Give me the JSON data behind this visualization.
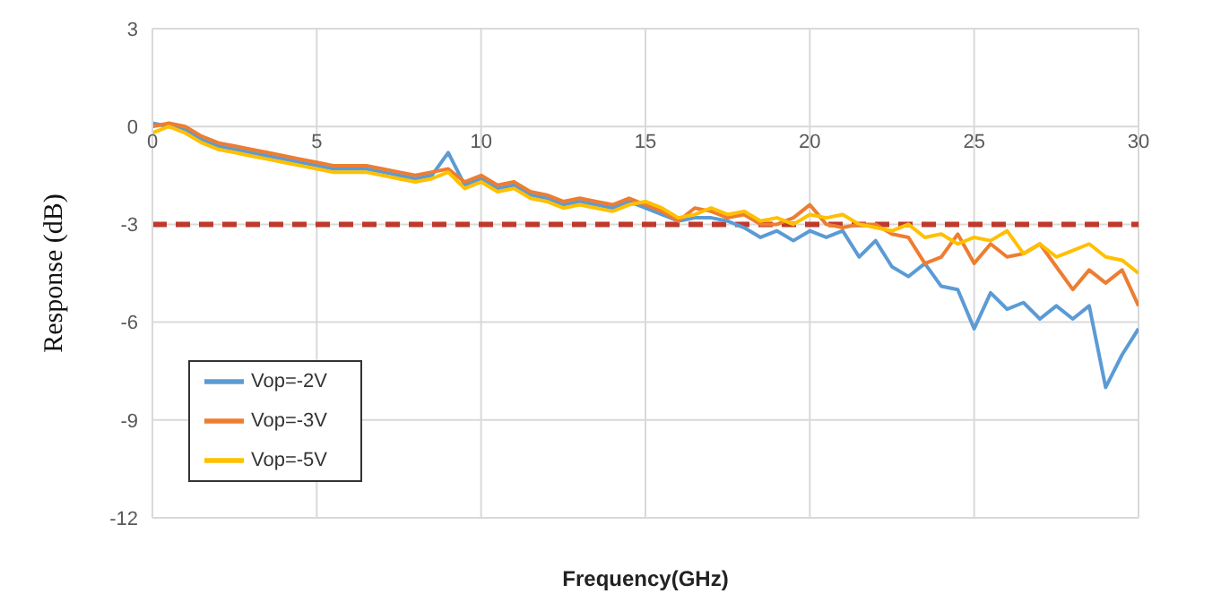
{
  "chart_data": {
    "type": "line",
    "xlabel": "Frequency(GHz)",
    "ylabel": "Response (dB)",
    "x": [
      0,
      0.5,
      1,
      1.5,
      2,
      2.5,
      3,
      3.5,
      4,
      4.5,
      5,
      5.5,
      6,
      6.5,
      7,
      7.5,
      8,
      8.5,
      9,
      9.5,
      10,
      10.5,
      11,
      11.5,
      12,
      12.5,
      13,
      13.5,
      14,
      14.5,
      15,
      15.5,
      16,
      16.5,
      17,
      17.5,
      18,
      18.5,
      19,
      19.5,
      20,
      20.5,
      21,
      21.5,
      22,
      22.5,
      23,
      23.5,
      24,
      24.5,
      25,
      25.5,
      26,
      26.5,
      27,
      27.5,
      28,
      28.5,
      29,
      29.5,
      30
    ],
    "series": [
      {
        "name": "Vop=-2V",
        "color": "#5b9bd5",
        "values": [
          0.1,
          0,
          -0.1,
          -0.4,
          -0.6,
          -0.7,
          -0.8,
          -0.9,
          -1.0,
          -1.1,
          -1.2,
          -1.3,
          -1.3,
          -1.3,
          -1.4,
          -1.5,
          -1.6,
          -1.5,
          -0.8,
          -1.8,
          -1.6,
          -1.9,
          -1.8,
          -2.1,
          -2.2,
          -2.4,
          -2.3,
          -2.4,
          -2.5,
          -2.3,
          -2.5,
          -2.7,
          -2.9,
          -2.8,
          -2.8,
          -2.9,
          -3.1,
          -3.4,
          -3.2,
          -3.5,
          -3.2,
          -3.4,
          -3.2,
          -4.0,
          -3.5,
          -4.3,
          -4.6,
          -4.2,
          -4.9,
          -5.0,
          -6.2,
          -5.1,
          -5.6,
          -5.4,
          -5.9,
          -5.5,
          -5.9,
          -5.5,
          -8.0,
          -7.0,
          -6.2
        ]
      },
      {
        "name": "Vop=-3V",
        "color": "#ed7d31",
        "values": [
          0,
          0.1,
          0,
          -0.3,
          -0.5,
          -0.6,
          -0.7,
          -0.8,
          -0.9,
          -1.0,
          -1.1,
          -1.2,
          -1.2,
          -1.2,
          -1.3,
          -1.4,
          -1.5,
          -1.4,
          -1.3,
          -1.7,
          -1.5,
          -1.8,
          -1.7,
          -2.0,
          -2.1,
          -2.3,
          -2.2,
          -2.3,
          -2.4,
          -2.2,
          -2.4,
          -2.6,
          -2.9,
          -2.5,
          -2.6,
          -2.8,
          -2.7,
          -3.0,
          -3.0,
          -2.8,
          -2.4,
          -3.0,
          -3.1,
          -3.0,
          -3.0,
          -3.3,
          -3.4,
          -4.2,
          -4.0,
          -3.3,
          -4.2,
          -3.6,
          -4.0,
          -3.9,
          -3.6,
          -4.3,
          -5.0,
          -4.4,
          -4.8,
          -4.4,
          -5.5
        ]
      },
      {
        "name": "Vop=-5V",
        "color": "#ffc000",
        "values": [
          -0.2,
          0,
          -0.2,
          -0.5,
          -0.7,
          -0.8,
          -0.9,
          -1.0,
          -1.1,
          -1.2,
          -1.3,
          -1.4,
          -1.4,
          -1.4,
          -1.5,
          -1.6,
          -1.7,
          -1.6,
          -1.4,
          -1.9,
          -1.7,
          -2.0,
          -1.9,
          -2.2,
          -2.3,
          -2.5,
          -2.4,
          -2.5,
          -2.6,
          -2.4,
          -2.3,
          -2.5,
          -2.8,
          -2.7,
          -2.5,
          -2.7,
          -2.6,
          -2.9,
          -2.8,
          -3.0,
          -2.7,
          -2.8,
          -2.7,
          -3.0,
          -3.1,
          -3.2,
          -3.0,
          -3.4,
          -3.3,
          -3.6,
          -3.4,
          -3.5,
          -3.2,
          -3.9,
          -3.6,
          -4.0,
          -3.8,
          -3.6,
          -4.0,
          -4.1,
          -4.5
        ]
      }
    ],
    "xlim": [
      0,
      30
    ],
    "xticks": [
      0,
      5,
      10,
      15,
      20,
      25,
      30
    ],
    "ylim": [
      -12,
      3
    ],
    "yticks": [
      -12,
      -9,
      -6,
      -3,
      0,
      3
    ],
    "ref_lines": [
      {
        "axis": "y",
        "value": -3,
        "color": "#c0392b",
        "line_style": "dashed"
      }
    ],
    "grid": true,
    "legend": "bottom left",
    "marker": "none",
    "line_style": "solid"
  }
}
